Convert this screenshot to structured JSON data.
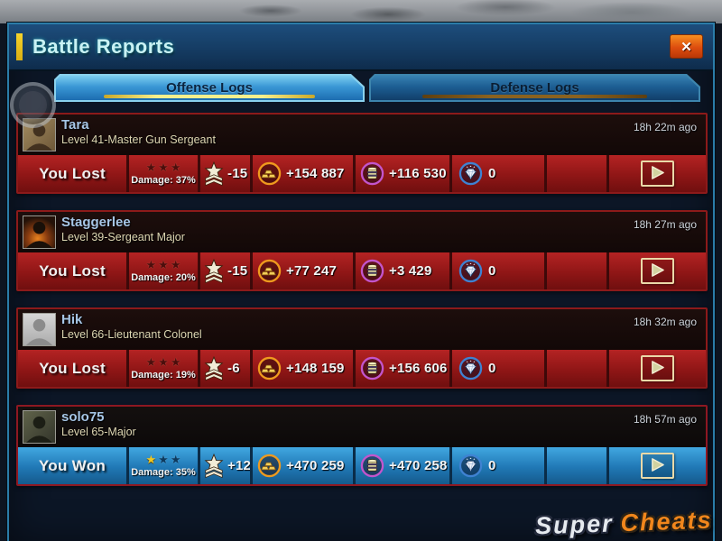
{
  "window": {
    "title": "Battle Reports"
  },
  "header": {
    "close_icon": "✕"
  },
  "tabs": [
    {
      "label": "Offense Logs",
      "active": true
    },
    {
      "label": "Defense Logs",
      "active": false
    }
  ],
  "icons": {
    "rank": "rank-insignia-star",
    "gold": "gold-bars",
    "oil": "oil-barrel",
    "diamond": "diamond",
    "replay": "play"
  },
  "colors": {
    "title_text": "#c9f2f4",
    "title_accent_bar": "#f2c81c",
    "active_tab_underline": "#f7ef8d",
    "inactive_tab_underline": "#8a6220",
    "lost_strip_red": "#8f1616",
    "won_strip_blue": "#2078b5",
    "gold_ring": "#ef9a1e",
    "oil_ring": "#c355cc",
    "diamond_ring": "#3f82d2",
    "close_button": "#dd4d0f",
    "star_filled": "#f3c81e"
  },
  "reports": [
    {
      "name": "Tara",
      "level_line": "Level 41-Master Gun Sergeant",
      "avatar": "soldier-portrait",
      "time": "18h 22m ago",
      "result": "You Lost",
      "won": false,
      "stars_filled": 0,
      "stars_total": 3,
      "damage_label": "Damage: 37%",
      "rank_change": "-15",
      "gold": "+154 887",
      "oil": "+116 530",
      "diamonds": "0"
    },
    {
      "name": "Staggerlee",
      "level_line": "Level 39-Sergeant Major",
      "avatar": "battle-explosion",
      "time": "18h 27m ago",
      "result": "You Lost",
      "won": false,
      "stars_filled": 0,
      "stars_total": 3,
      "damage_label": "Damage: 20%",
      "rank_change": "-15",
      "gold": "+77 247",
      "oil": "+3 429",
      "diamonds": "0"
    },
    {
      "name": "Hik",
      "level_line": "Level 66-Lieutenant Colonel",
      "avatar": "default-silhouette",
      "time": "18h 32m ago",
      "result": "You Lost",
      "won": false,
      "stars_filled": 0,
      "stars_total": 3,
      "damage_label": "Damage: 19%",
      "rank_change": "-6",
      "gold": "+148 159",
      "oil": "+156 606",
      "diamonds": "0"
    },
    {
      "name": "solo75",
      "level_line": "Level 65-Major",
      "avatar": "soldier-helmet",
      "time": "18h 57m ago",
      "result": "You Won",
      "won": true,
      "stars_filled": 1,
      "stars_total": 3,
      "damage_label": "Damage: 35%",
      "rank_change": "+12",
      "gold": "+470 259",
      "oil": "+470 258",
      "diamonds": "0"
    }
  ],
  "watermark": {
    "part1": "Super",
    "part2": "Cheats"
  }
}
